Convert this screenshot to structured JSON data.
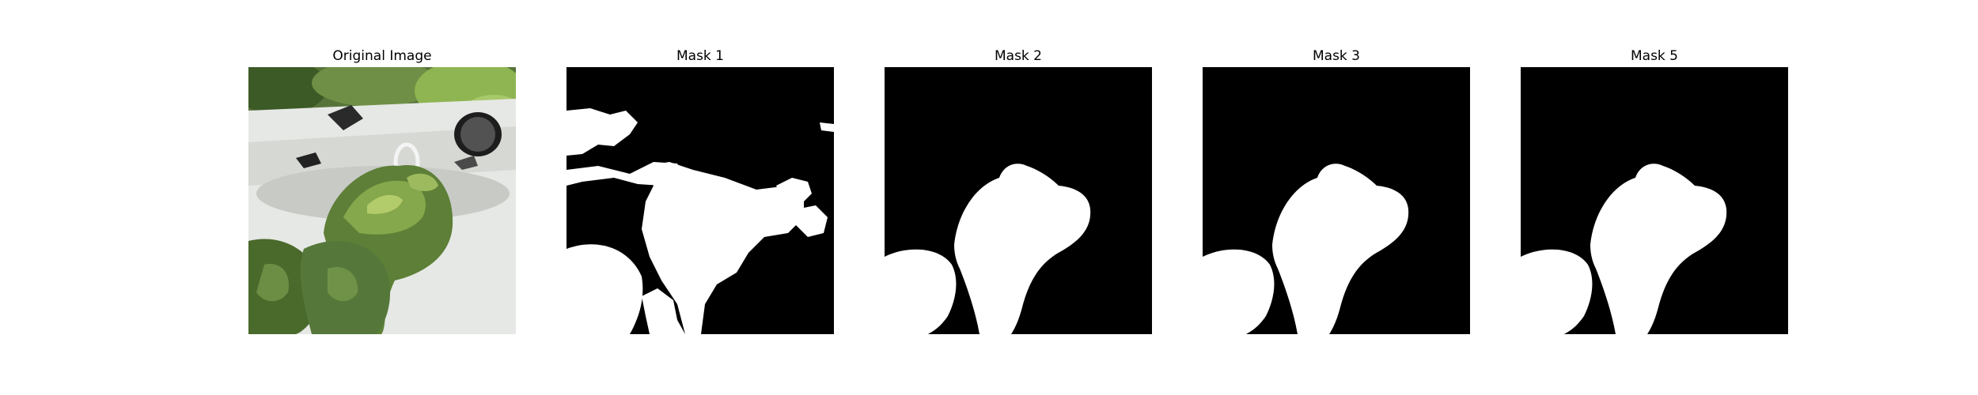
{
  "figure": {
    "panels": [
      {
        "title": "Original Image",
        "kind": "photo"
      },
      {
        "title": "Mask 1",
        "kind": "mask"
      },
      {
        "title": "Mask 2",
        "kind": "mask"
      },
      {
        "title": "Mask 3",
        "kind": "mask"
      },
      {
        "title": "Mask 5",
        "kind": "mask"
      }
    ]
  },
  "colors": {
    "mask_background": "#000000",
    "mask_foreground": "#ffffff",
    "leaf_dark": "#3f5a2a",
    "leaf_mid": "#587a36",
    "leaf_light": "#8fae52",
    "pot_white": "#e3e5e2",
    "pot_shadow": "#c9cbc7",
    "foliage_bg": "#5f7d3a"
  }
}
